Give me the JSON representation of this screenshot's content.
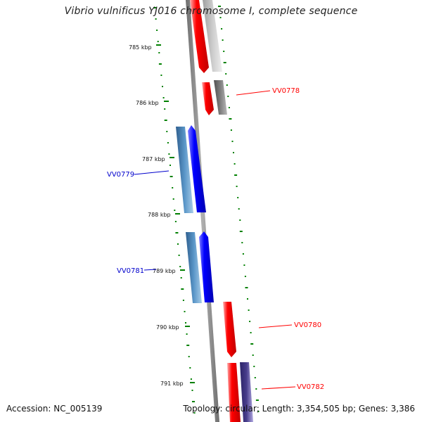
{
  "title": "Vibrio vulnificus YJ016 chromosome I, complete sequence",
  "footer": {
    "accession": "Accession: NC_005139",
    "summary": "Topology: circular; Length: 3,354,505 bp; Genes: 3,386"
  },
  "kbp_labels": [
    "785 kbp",
    "786 kbp",
    "787 kbp",
    "788 kbp",
    "789 kbp",
    "790 kbp",
    "791 kbp"
  ],
  "gene_labels": [
    "VV0778",
    "VV0779",
    "VV0781",
    "VV0780",
    "VV0782"
  ],
  "colors": {
    "red": "#ff0000",
    "blue": "#0000ff",
    "steelblue": "#4682b4",
    "gray": "#808080",
    "lightgray": "#c0c0c0",
    "slate": "#483d8b",
    "green": "#008000",
    "label_red": "#ff0000",
    "label_blue": "#0000cc"
  }
}
